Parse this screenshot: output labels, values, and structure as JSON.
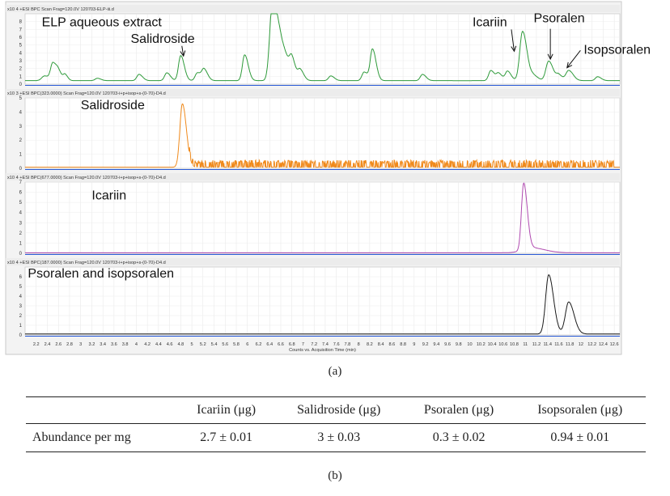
{
  "figure_labels": {
    "a": "(a)",
    "b": "(b)"
  },
  "chart_data": [
    {
      "type": "line",
      "panel": "ELP aqueous extract",
      "header": "x10 4  +ESI BPC Scan Frag=120.0V 120703-ELP-iii.d",
      "color": "#2e9a3a",
      "xlim": [
        2.0,
        12.7
      ],
      "ylim": [
        0,
        9
      ],
      "yticks": [
        0,
        1,
        2,
        3,
        4,
        5,
        6,
        7,
        8
      ],
      "annotations": [
        {
          "text": "ELP aqueous extract",
          "x": 2.3,
          "y": 7.4,
          "arrow": false
        },
        {
          "text": "Salidroside",
          "x": 3.9,
          "y": 5.3,
          "arrow": true,
          "arrow_to": [
            4.85,
            3.6
          ]
        },
        {
          "text": "Icariin",
          "x": 10.05,
          "y": 7.4,
          "arrow": true,
          "arrow_to": [
            10.8,
            4.2
          ]
        },
        {
          "text": "Psoralen",
          "x": 11.15,
          "y": 7.9,
          "arrow": true,
          "arrow_to": [
            11.45,
            3.2
          ]
        },
        {
          "text": "Isopsoralen",
          "x": 12.05,
          "y": 3.9,
          "arrow": true,
          "arrow_to": [
            11.75,
            2.1
          ]
        }
      ],
      "baseline": 0.45,
      "peaks": [
        {
          "x": 2.35,
          "h": 0.6,
          "w": 0.05
        },
        {
          "x": 2.5,
          "h": 2.2,
          "w": 0.04
        },
        {
          "x": 2.6,
          "h": 1.0,
          "w": 0.04
        },
        {
          "x": 2.72,
          "h": 0.7,
          "w": 0.03
        },
        {
          "x": 3.3,
          "h": 0.3,
          "w": 0.04
        },
        {
          "x": 4.05,
          "h": 0.8,
          "w": 0.04
        },
        {
          "x": 4.55,
          "h": 1.0,
          "w": 0.04
        },
        {
          "x": 4.8,
          "h": 3.2,
          "w": 0.04
        },
        {
          "x": 5.1,
          "h": 1.0,
          "w": 0.04
        },
        {
          "x": 5.22,
          "h": 1.4,
          "w": 0.04
        },
        {
          "x": 5.95,
          "h": 3.3,
          "w": 0.04
        },
        {
          "x": 6.45,
          "h": 9.5,
          "w": 0.05
        },
        {
          "x": 6.6,
          "h": 4.5,
          "w": 0.08
        },
        {
          "x": 6.8,
          "h": 2.0,
          "w": 0.04
        },
        {
          "x": 6.95,
          "h": 1.3,
          "w": 0.04
        },
        {
          "x": 7.5,
          "h": 0.6,
          "w": 0.04
        },
        {
          "x": 8.1,
          "h": 1.1,
          "w": 0.04
        },
        {
          "x": 8.25,
          "h": 4.0,
          "w": 0.04
        },
        {
          "x": 9.15,
          "h": 0.8,
          "w": 0.04
        },
        {
          "x": 10.38,
          "h": 1.3,
          "w": 0.04
        },
        {
          "x": 10.52,
          "h": 0.9,
          "w": 0.04
        },
        {
          "x": 10.68,
          "h": 1.2,
          "w": 0.04
        },
        {
          "x": 10.95,
          "h": 6.3,
          "w": 0.05
        },
        {
          "x": 11.15,
          "h": 0.6,
          "w": 0.05
        },
        {
          "x": 11.42,
          "h": 2.5,
          "w": 0.05
        },
        {
          "x": 11.6,
          "h": 0.7,
          "w": 0.04
        },
        {
          "x": 11.78,
          "h": 1.3,
          "w": 0.05
        },
        {
          "x": 12.3,
          "h": 0.5,
          "w": 0.04
        }
      ]
    },
    {
      "type": "line",
      "panel": "Salidroside",
      "header": "x10 3  +ESI BPC(323.0000) Scan Frag=120.0V 120703-i+p+isop+s-(0-70)-D4.d",
      "color": "#f08a1c",
      "xlim": [
        2.0,
        12.7
      ],
      "ylim": [
        0,
        5
      ],
      "yticks": [
        0,
        1,
        2,
        3,
        4,
        5
      ],
      "annotations": [
        {
          "text": "Salidroside",
          "x": 3.0,
          "y": 4.2,
          "arrow": false
        }
      ],
      "baseline": 0.08,
      "noise": {
        "from": 4.95,
        "to": 12.6,
        "amp": 0.5
      },
      "peaks": [
        {
          "x": 4.83,
          "h": 4.5,
          "w": 0.045
        }
      ]
    },
    {
      "type": "line",
      "panel": "Icariin",
      "header": "x10 4  +ESI BPC(677.0000) Scan Frag=120.0V 120703-i+p+isop+s-(0-70)-D4.d",
      "color": "#b04ab0",
      "xlim": [
        2.0,
        12.7
      ],
      "ylim": [
        0,
        7
      ],
      "yticks": [
        0,
        1,
        2,
        3,
        4,
        5,
        6,
        7
      ],
      "annotations": [
        {
          "text": "Icariin",
          "x": 3.2,
          "y": 5.3,
          "arrow": false
        }
      ],
      "baseline": 0.05,
      "peaks": [
        {
          "x": 10.97,
          "h": 6.5,
          "w": 0.04
        },
        {
          "x": 11.1,
          "h": 0.5,
          "w": 0.15
        }
      ]
    },
    {
      "type": "line",
      "panel": "Psoralen and isopsoralen",
      "header": "x10 4  +ESI BPC(187.0000) Scan Frag=120.0V 120703-i+p+isop+s-(0-70)-D4.d",
      "color": "#1a1a1a",
      "xlim": [
        2.0,
        12.7
      ],
      "ylim": [
        0,
        7
      ],
      "yticks": [
        0,
        1,
        2,
        3,
        4,
        5,
        6
      ],
      "annotations": [
        {
          "text": "Psoralen and isopsoralen",
          "x": 2.05,
          "y": 5.9,
          "arrow": false
        }
      ],
      "baseline": 0.1,
      "peaks": [
        {
          "x": 11.42,
          "h": 6.1,
          "w": 0.055
        },
        {
          "x": 11.78,
          "h": 3.3,
          "w": 0.06
        }
      ]
    }
  ],
  "x_axis": {
    "label": "Counts vs. Acquisition Time (min)",
    "ticks": [
      "2.2",
      "2.4",
      "2.6",
      "2.8",
      "3",
      "3.2",
      "3.4",
      "3.6",
      "3.8",
      "4",
      "4.2",
      "4.4",
      "4.6",
      "4.8",
      "5",
      "5.2",
      "5.4",
      "5.6",
      "5.8",
      "6",
      "6.2",
      "6.4",
      "6.6",
      "6.8",
      "7",
      "7.2",
      "7.4",
      "7.6",
      "7.8",
      "8",
      "8.2",
      "8.4",
      "8.6",
      "8.8",
      "9",
      "9.2",
      "9.4",
      "9.6",
      "9.8",
      "10",
      "10.2",
      "10.4",
      "10.6",
      "10.8",
      "11",
      "11.2",
      "11.4",
      "11.6",
      "11.8",
      "12",
      "12.2",
      "12.4",
      "12.6"
    ]
  },
  "table": {
    "headers": [
      "",
      "Icariin (μg)",
      "Salidroside (μg)",
      "Psoralen (μg)",
      "Isopsoralen (μg)"
    ],
    "rows": [
      {
        "label": "Abundance per mg",
        "cells": [
          "2.7 ± 0.01",
          "3 ± 0.03",
          "0.3 ± 0.02",
          "0.94 ± 0.01"
        ]
      }
    ]
  }
}
